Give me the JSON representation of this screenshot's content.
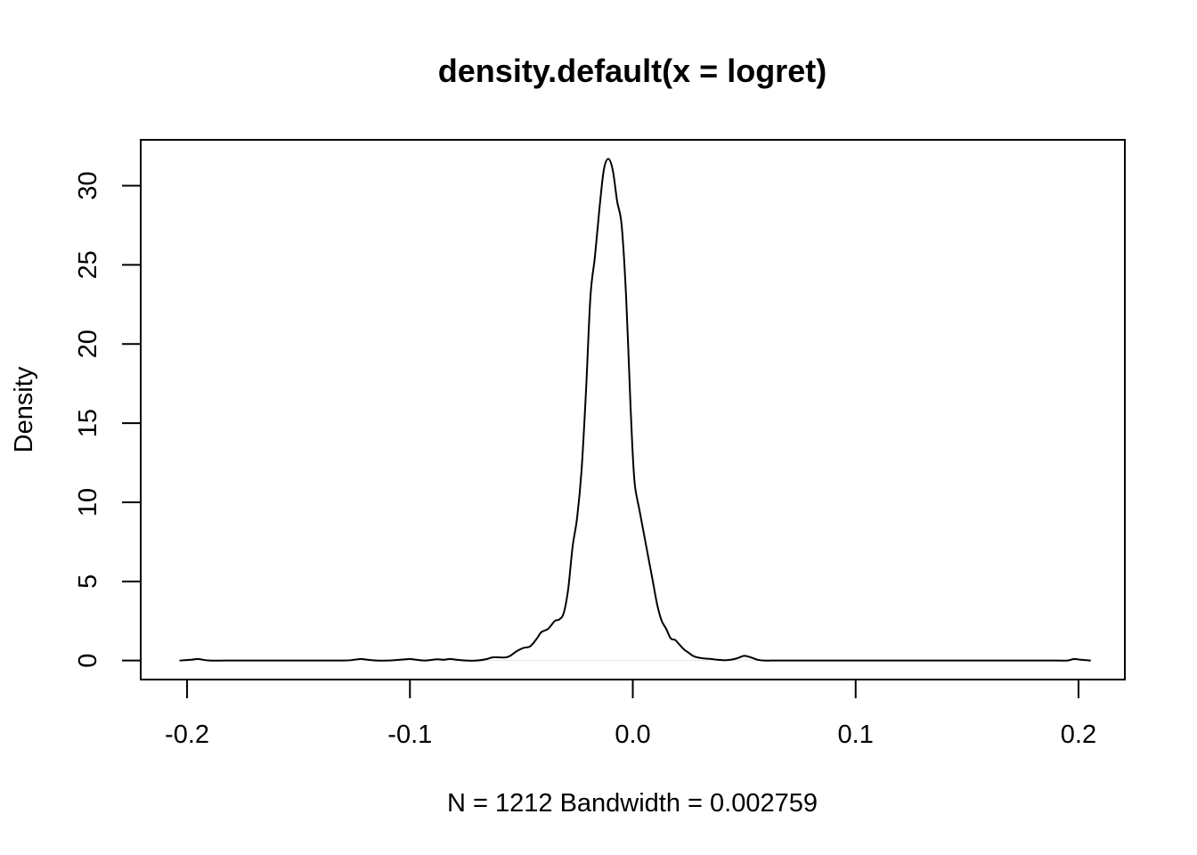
{
  "chart_data": {
    "type": "line",
    "title": "density.default(x = logret)",
    "xlabel": "N = 1212   Bandwidth = 0.002759",
    "ylabel": "Density",
    "xlim": [
      -0.2208,
      0.2208
    ],
    "ylim": [
      -1.2,
      32.9
    ],
    "x_ticks": [
      -0.2,
      -0.1,
      0.0,
      0.1,
      0.2
    ],
    "x_tick_labels": [
      "-0.2",
      "-0.1",
      "0.0",
      "0.1",
      "0.2"
    ],
    "y_ticks": [
      0,
      5,
      10,
      15,
      20,
      25,
      30
    ],
    "y_tick_labels": [
      "0",
      "5",
      "10",
      "15",
      "20",
      "25",
      "30"
    ],
    "grid": false,
    "zero_line": true,
    "series": [
      {
        "x": [
          -0.2034,
          -0.198,
          -0.195,
          -0.19,
          -0.18,
          -0.15,
          -0.13,
          -0.125,
          -0.122,
          -0.119,
          -0.115,
          -0.11,
          -0.102,
          -0.1,
          -0.097,
          -0.093,
          -0.088,
          -0.085,
          -0.082,
          -0.079,
          -0.075,
          -0.07,
          -0.066,
          -0.063,
          -0.06,
          -0.057,
          -0.055,
          -0.052,
          -0.049,
          -0.046,
          -0.043,
          -0.041,
          -0.038,
          -0.035,
          -0.033,
          -0.031,
          -0.029,
          -0.027,
          -0.025,
          -0.023,
          -0.021,
          -0.019,
          -0.017,
          -0.015,
          -0.013,
          -0.011,
          -0.009,
          -0.007,
          -0.005,
          -0.003,
          -0.001,
          0.0,
          0.001,
          0.003,
          0.005,
          0.007,
          0.009,
          0.011,
          0.013,
          0.015,
          0.017,
          0.019,
          0.021,
          0.023,
          0.025,
          0.027,
          0.029,
          0.031,
          0.033,
          0.035,
          0.038,
          0.041,
          0.044,
          0.047,
          0.05,
          0.053,
          0.056,
          0.059,
          0.062,
          0.065,
          0.068,
          0.071,
          0.074,
          0.077,
          0.08,
          0.083,
          0.086,
          0.089,
          0.092,
          0.095,
          0.098,
          0.1,
          0.12,
          0.15,
          0.18,
          0.19,
          0.195,
          0.198,
          0.201,
          0.2055
        ],
        "values": [
          0.0,
          0.05,
          0.1,
          0.0,
          0.0,
          0.0,
          0.0,
          0.05,
          0.1,
          0.05,
          0.0,
          0.0,
          0.08,
          0.1,
          0.05,
          0.0,
          0.08,
          0.05,
          0.1,
          0.05,
          0.0,
          0.0,
          0.08,
          0.2,
          0.2,
          0.2,
          0.3,
          0.6,
          0.8,
          0.9,
          1.4,
          1.8,
          2.0,
          2.5,
          2.6,
          3.0,
          4.5,
          7.2,
          9.0,
          12.0,
          17.0,
          23.0,
          25.5,
          28.5,
          31.0,
          31.7,
          31.0,
          29.0,
          27.5,
          23.0,
          16.0,
          13.0,
          11.0,
          9.5,
          8.0,
          6.5,
          5.0,
          3.5,
          2.5,
          2.0,
          1.4,
          1.3,
          1.0,
          0.7,
          0.5,
          0.3,
          0.2,
          0.15,
          0.12,
          0.1,
          0.05,
          0.02,
          0.05,
          0.15,
          0.3,
          0.2,
          0.05,
          0.0,
          0.0,
          0.0,
          0.0,
          0.0,
          0.0,
          0.0,
          0.0,
          0.0,
          0.0,
          0.0,
          0.0,
          0.0,
          0.0,
          0.0,
          0.0,
          0.0,
          0.0,
          0.0,
          0.0,
          0.1,
          0.05,
          0.0
        ]
      }
    ]
  }
}
